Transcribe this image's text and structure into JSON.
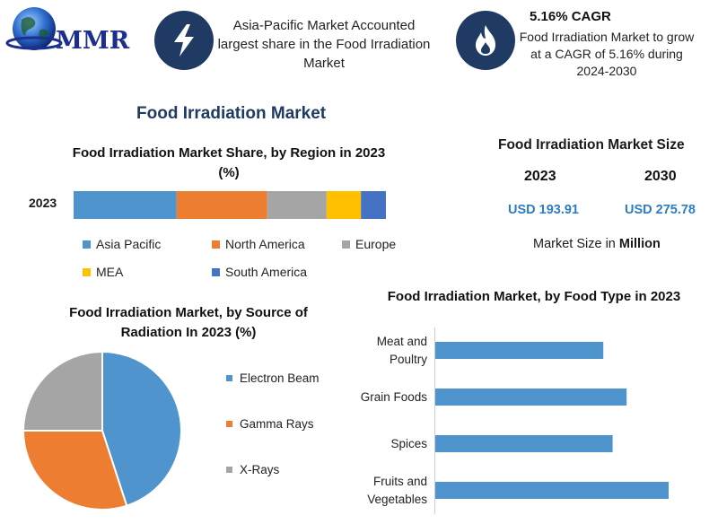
{
  "logo": {
    "text": "MMR"
  },
  "colors": {
    "dark_navy": "#1f3b63",
    "asia_pacific": "#4f94cd",
    "north_america": "#ed7d31",
    "europe": "#a5a5a5",
    "mea": "#ffc000",
    "south_america": "#4472c4",
    "value_blue": "#2e7cc4",
    "title_navy": "#1f3b63"
  },
  "highlights": {
    "region_text": "Asia-Pacific Market Accounted largest share in the Food Irradiation Market",
    "region_icon": "lightning-icon",
    "cagr_title": "5.16% CAGR",
    "cagr_text": "Food Irradiation Market to grow at a CAGR of 5.16% during 2024-2030",
    "cagr_icon": "flame-icon"
  },
  "main_title": "Food Irradiation Market",
  "market_size": {
    "title": "Food Irradiation Market Size",
    "year1": "2023",
    "year2": "2030",
    "value1": "USD 193.91",
    "value2": "USD 275.78",
    "unit_prefix": "Market Size in ",
    "unit_bold": "Million"
  },
  "chart_data": [
    {
      "type": "bar",
      "orientation": "horizontal-stacked",
      "title": "Food Irradiation Market Share, by Region in 2023 (%)",
      "categories": [
        "2023"
      ],
      "series": [
        {
          "name": "Asia Pacific",
          "values": [
            33
          ]
        },
        {
          "name": "North America",
          "values": [
            29
          ]
        },
        {
          "name": "Europe",
          "values": [
            19
          ]
        },
        {
          "name": "MEA",
          "values": [
            11
          ]
        },
        {
          "name": "South America",
          "values": [
            8
          ]
        }
      ],
      "legend": "bottom"
    },
    {
      "type": "pie",
      "title": "Food Irradiation Market, by Source of Radiation In 2023 (%)",
      "labels": [
        "Electron Beam",
        "Gamma Rays",
        "X-Rays"
      ],
      "values": [
        45,
        30,
        25
      ],
      "legend": "right"
    },
    {
      "type": "bar",
      "orientation": "horizontal",
      "title": "Food Irradiation Market, by Food Type in 2023",
      "categories": [
        "Meat and Poultry",
        "Grain Foods",
        "Spices",
        "Fruits and Vegetables"
      ],
      "values": [
        72,
        82,
        76,
        100
      ],
      "xlim": [
        0,
        100
      ]
    }
  ]
}
